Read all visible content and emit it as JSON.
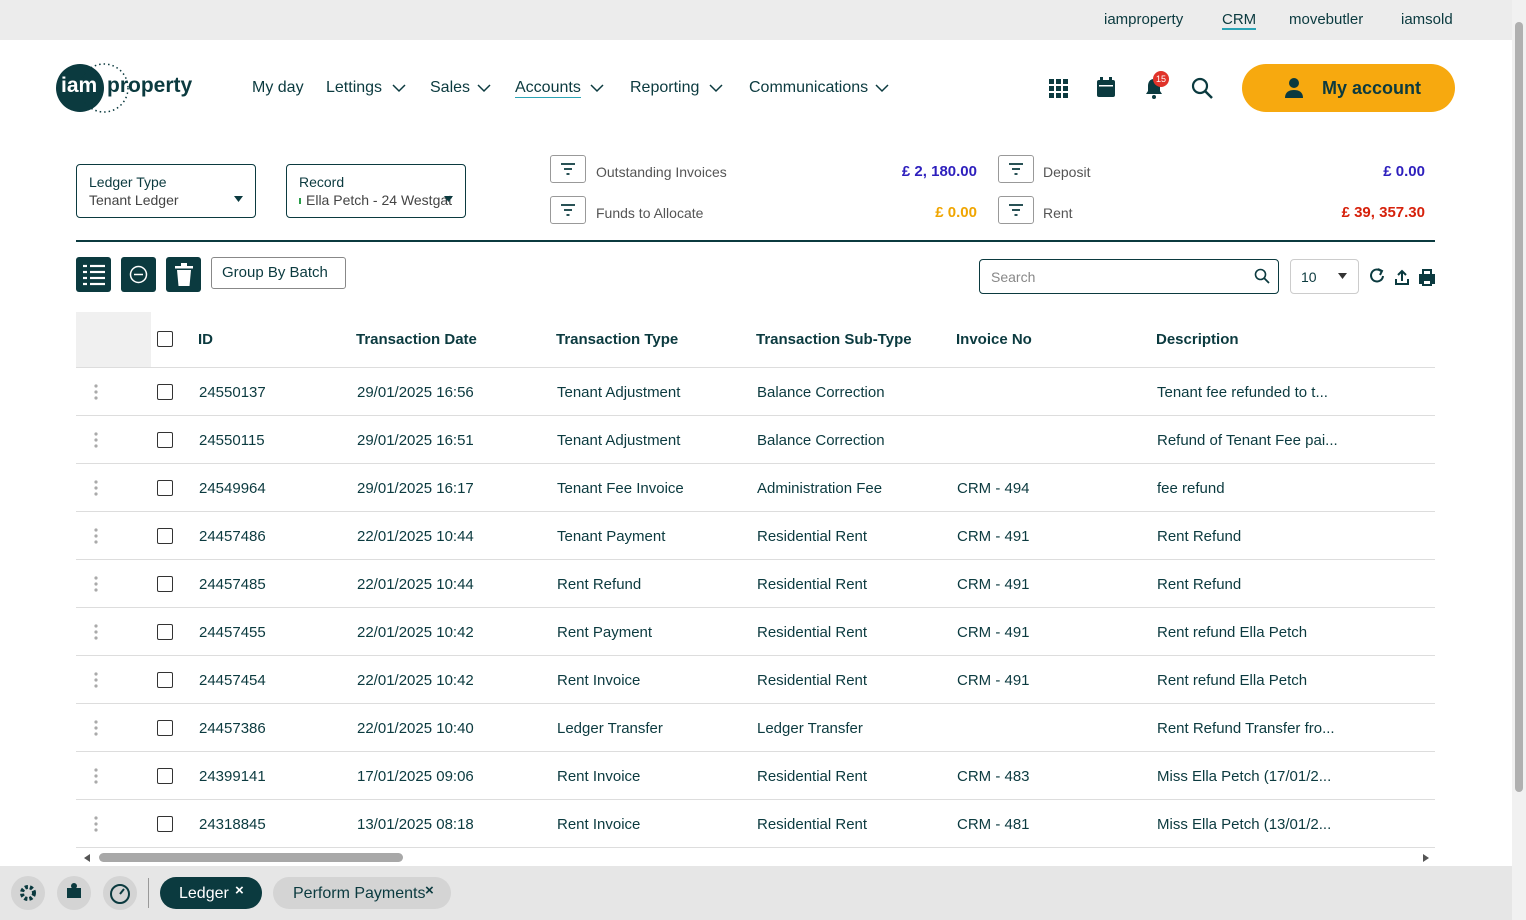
{
  "top_links": [
    "iamproperty",
    "CRM",
    "movebutler",
    "iamsold"
  ],
  "logo": {
    "part1": "iam",
    "part2": "property"
  },
  "nav": [
    "My day",
    "Lettings",
    "Sales",
    "Accounts",
    "Reporting",
    "Communications"
  ],
  "notification_count": 15,
  "account_button": "My account",
  "filters": [
    {
      "label": "Ledger Type",
      "value": "Tenant Ledger"
    },
    {
      "label": "Record",
      "value": "Ella Petch - 24 Westgat"
    }
  ],
  "summary": [
    {
      "label": "Outstanding Invoices",
      "value": "£ 2, 180.00"
    },
    {
      "label": "Funds to Allocate",
      "value": "£ 0.00"
    },
    {
      "label": "Deposit",
      "value": "£ 0.00"
    },
    {
      "label": "Rent",
      "value": "£ 39, 357.30"
    }
  ],
  "toolbar": {
    "group_button": "Group By Batch",
    "search_placeholder": "Search",
    "page_size": "10"
  },
  "table": {
    "columns": [
      "ID",
      "Transaction Date",
      "Transaction Type",
      "Transaction Sub-Type",
      "Invoice No",
      "Description"
    ],
    "rows": [
      [
        "24550137",
        "29/01/2025 16:56",
        "Tenant Adjustment",
        "Balance Correction",
        "",
        "Tenant fee refunded to t..."
      ],
      [
        "24550115",
        "29/01/2025 16:51",
        "Tenant Adjustment",
        "Balance Correction",
        "",
        "Refund of Tenant Fee pai..."
      ],
      [
        "24549964",
        "29/01/2025 16:17",
        "Tenant Fee Invoice",
        "Administration Fee",
        "CRM - 494",
        "fee refund"
      ],
      [
        "24457486",
        "22/01/2025 10:44",
        "Tenant Payment",
        "Residential Rent",
        "CRM - 491",
        "Rent Refund"
      ],
      [
        "24457485",
        "22/01/2025 10:44",
        "Rent Refund",
        "Residential Rent",
        "CRM - 491",
        "Rent Refund"
      ],
      [
        "24457455",
        "22/01/2025 10:42",
        "Rent Payment",
        "Residential Rent",
        "CRM - 491",
        "Rent refund Ella Petch"
      ],
      [
        "24457454",
        "22/01/2025 10:42",
        "Rent Invoice",
        "Residential Rent",
        "CRM - 491",
        "Rent refund Ella Petch"
      ],
      [
        "24457386",
        "22/01/2025 10:40",
        "Ledger Transfer",
        "Ledger Transfer",
        "",
        "Rent Refund Transfer fro..."
      ],
      [
        "24399141",
        "17/01/2025 09:06",
        "Rent Invoice",
        "Residential Rent",
        "CRM - 483",
        "Miss Ella Petch (17/01/2..."
      ],
      [
        "24318845",
        "13/01/2025 08:18",
        "Rent Invoice",
        "Residential Rent",
        "CRM - 481",
        "Miss Ella Petch (13/01/2..."
      ]
    ]
  },
  "bottom_tabs": [
    "Ledger",
    "Perform Payments"
  ]
}
